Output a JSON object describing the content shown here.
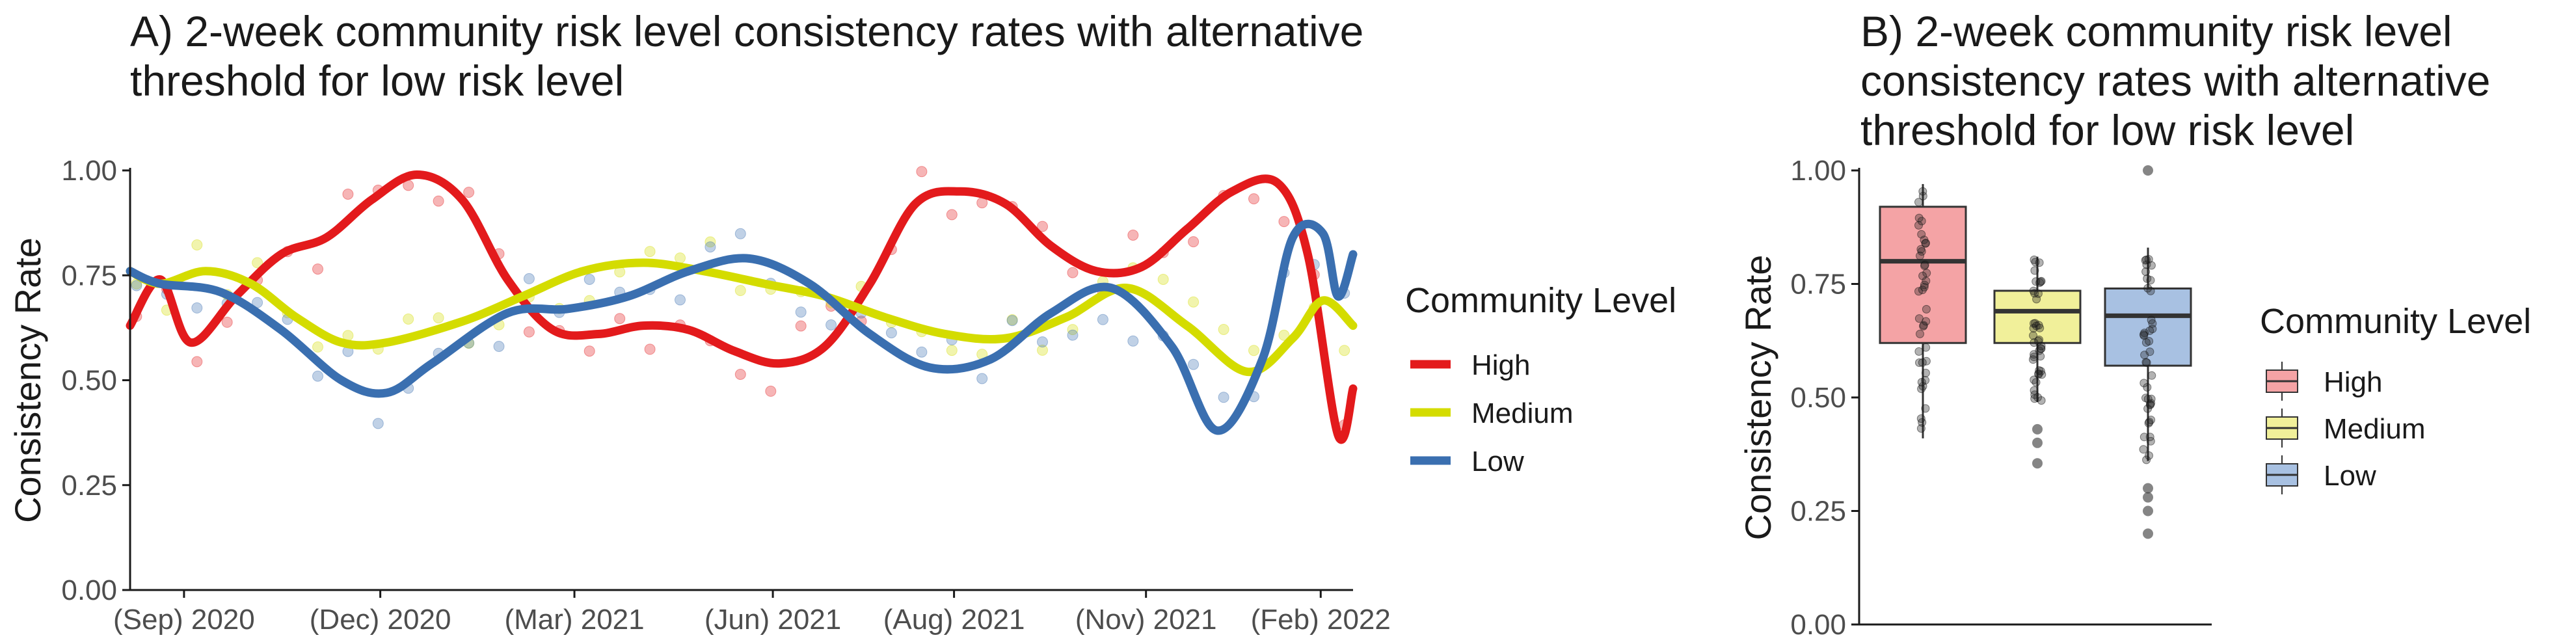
{
  "titles": {
    "a": "A) 2-week community risk level consistency rates with alternative\nthreshold for low risk level",
    "b": "B) 2-week community risk level\nconsistency rates with alternative\nthreshold for low risk level"
  },
  "colors": {
    "High": "#e31a1c",
    "Medium": "#d4dc00",
    "Low": "#3a6fb0"
  },
  "box_fills": {
    "High": "#f4a3a5",
    "Medium": "#f1f09a",
    "Low": "#a8c1e2"
  },
  "chart_data": [
    {
      "type": "line",
      "title": "A) 2-week community risk level consistency rates with alternative threshold for low risk level",
      "xlabel": "",
      "ylabel": "Consistency Rate",
      "xlim": [
        "2020-08-07",
        "2022-02-25"
      ],
      "ylim": [
        0,
        1
      ],
      "x_ticks": [
        "(Sep) 2020",
        "(Dec) 2020",
        "(Mar) 2021",
        "(Jun) 2021",
        "(Aug) 2021",
        "(Nov) 2021",
        "(Feb) 2022"
      ],
      "y_ticks": [
        "0.00",
        "0.25",
        "0.50",
        "0.75",
        "1.00"
      ],
      "legend_title": "Community Level",
      "legend_position": "right",
      "grid": false,
      "series": [
        {
          "name": "High",
          "x": [
            "2020-08-07",
            "2020-08-21",
            "2020-09-04",
            "2020-09-25",
            "2020-10-16",
            "2020-11-06",
            "2020-11-27",
            "2020-12-18",
            "2021-01-08",
            "2021-01-29",
            "2021-02-19",
            "2021-03-12",
            "2021-04-02",
            "2021-04-23",
            "2021-05-14",
            "2021-06-04",
            "2021-06-25",
            "2021-07-16",
            "2021-08-06",
            "2021-08-27",
            "2021-09-17",
            "2021-10-08",
            "2021-10-29",
            "2021-11-19",
            "2021-12-10",
            "2021-12-31",
            "2022-01-21",
            "2022-02-04",
            "2022-02-18",
            "2022-02-25"
          ],
          "y": [
            0.63,
            0.74,
            0.59,
            0.7,
            0.8,
            0.84,
            0.93,
            0.99,
            0.93,
            0.74,
            0.62,
            0.61,
            0.63,
            0.62,
            0.57,
            0.54,
            0.58,
            0.73,
            0.92,
            0.95,
            0.92,
            0.82,
            0.76,
            0.77,
            0.86,
            0.95,
            0.97,
            0.8,
            0.37,
            0.48
          ]
        },
        {
          "name": "Medium",
          "x": [
            "2020-08-07",
            "2020-08-21",
            "2020-09-11",
            "2020-10-02",
            "2020-10-23",
            "2020-11-13",
            "2020-12-04",
            "2021-01-08",
            "2021-02-05",
            "2021-03-05",
            "2021-04-02",
            "2021-04-30",
            "2021-05-28",
            "2021-06-25",
            "2021-07-23",
            "2021-08-20",
            "2021-09-17",
            "2021-10-15",
            "2021-11-12",
            "2021-12-10",
            "2022-01-07",
            "2022-01-28",
            "2022-02-11",
            "2022-02-25"
          ],
          "y": [
            0.76,
            0.73,
            0.76,
            0.73,
            0.65,
            0.59,
            0.59,
            0.64,
            0.7,
            0.76,
            0.78,
            0.76,
            0.73,
            0.7,
            0.65,
            0.61,
            0.6,
            0.65,
            0.72,
            0.63,
            0.52,
            0.6,
            0.69,
            0.63
          ]
        },
        {
          "name": "Low",
          "x": [
            "2020-08-07",
            "2020-08-21",
            "2020-09-18",
            "2020-10-16",
            "2020-11-13",
            "2020-12-04",
            "2020-12-25",
            "2021-01-29",
            "2021-02-26",
            "2021-03-26",
            "2021-04-23",
            "2021-05-21",
            "2021-06-18",
            "2021-07-16",
            "2021-08-13",
            "2021-09-10",
            "2021-10-08",
            "2021-11-05",
            "2021-12-03",
            "2021-12-24",
            "2022-01-14",
            "2022-01-28",
            "2022-02-11",
            "2022-02-18",
            "2022-02-25"
          ],
          "y": [
            0.76,
            0.73,
            0.71,
            0.62,
            0.5,
            0.47,
            0.54,
            0.66,
            0.67,
            0.7,
            0.76,
            0.79,
            0.73,
            0.61,
            0.53,
            0.55,
            0.66,
            0.72,
            0.58,
            0.38,
            0.55,
            0.84,
            0.85,
            0.7,
            0.8
          ]
        }
      ]
    },
    {
      "type": "box",
      "title": "B) 2-week community risk level consistency rates with alternative threshold for low risk level",
      "xlabel": "",
      "ylabel": "Consistency Rate",
      "ylim": [
        0,
        1
      ],
      "y_ticks": [
        "0.00",
        "0.25",
        "0.50",
        "0.75",
        "1.00"
      ],
      "categories": [
        "High",
        "Medium",
        "Low"
      ],
      "legend_title": "Community Level",
      "legend_position": "right",
      "boxes": [
        {
          "name": "High",
          "q1": 0.62,
          "median": 0.8,
          "q3": 0.92,
          "whisker_low": 0.41,
          "whisker_high": 0.97,
          "outliers": []
        },
        {
          "name": "Medium",
          "q1": 0.62,
          "median": 0.69,
          "q3": 0.735,
          "whisker_low": 0.49,
          "whisker_high": 0.81,
          "outliers": [
            0.43,
            0.4,
            0.355
          ]
        },
        {
          "name": "Low",
          "q1": 0.57,
          "median": 0.68,
          "q3": 0.74,
          "whisker_low": 0.36,
          "whisker_high": 0.83,
          "outliers": [
            1.0,
            0.3,
            0.28,
            0.25,
            0.2
          ]
        }
      ]
    }
  ]
}
